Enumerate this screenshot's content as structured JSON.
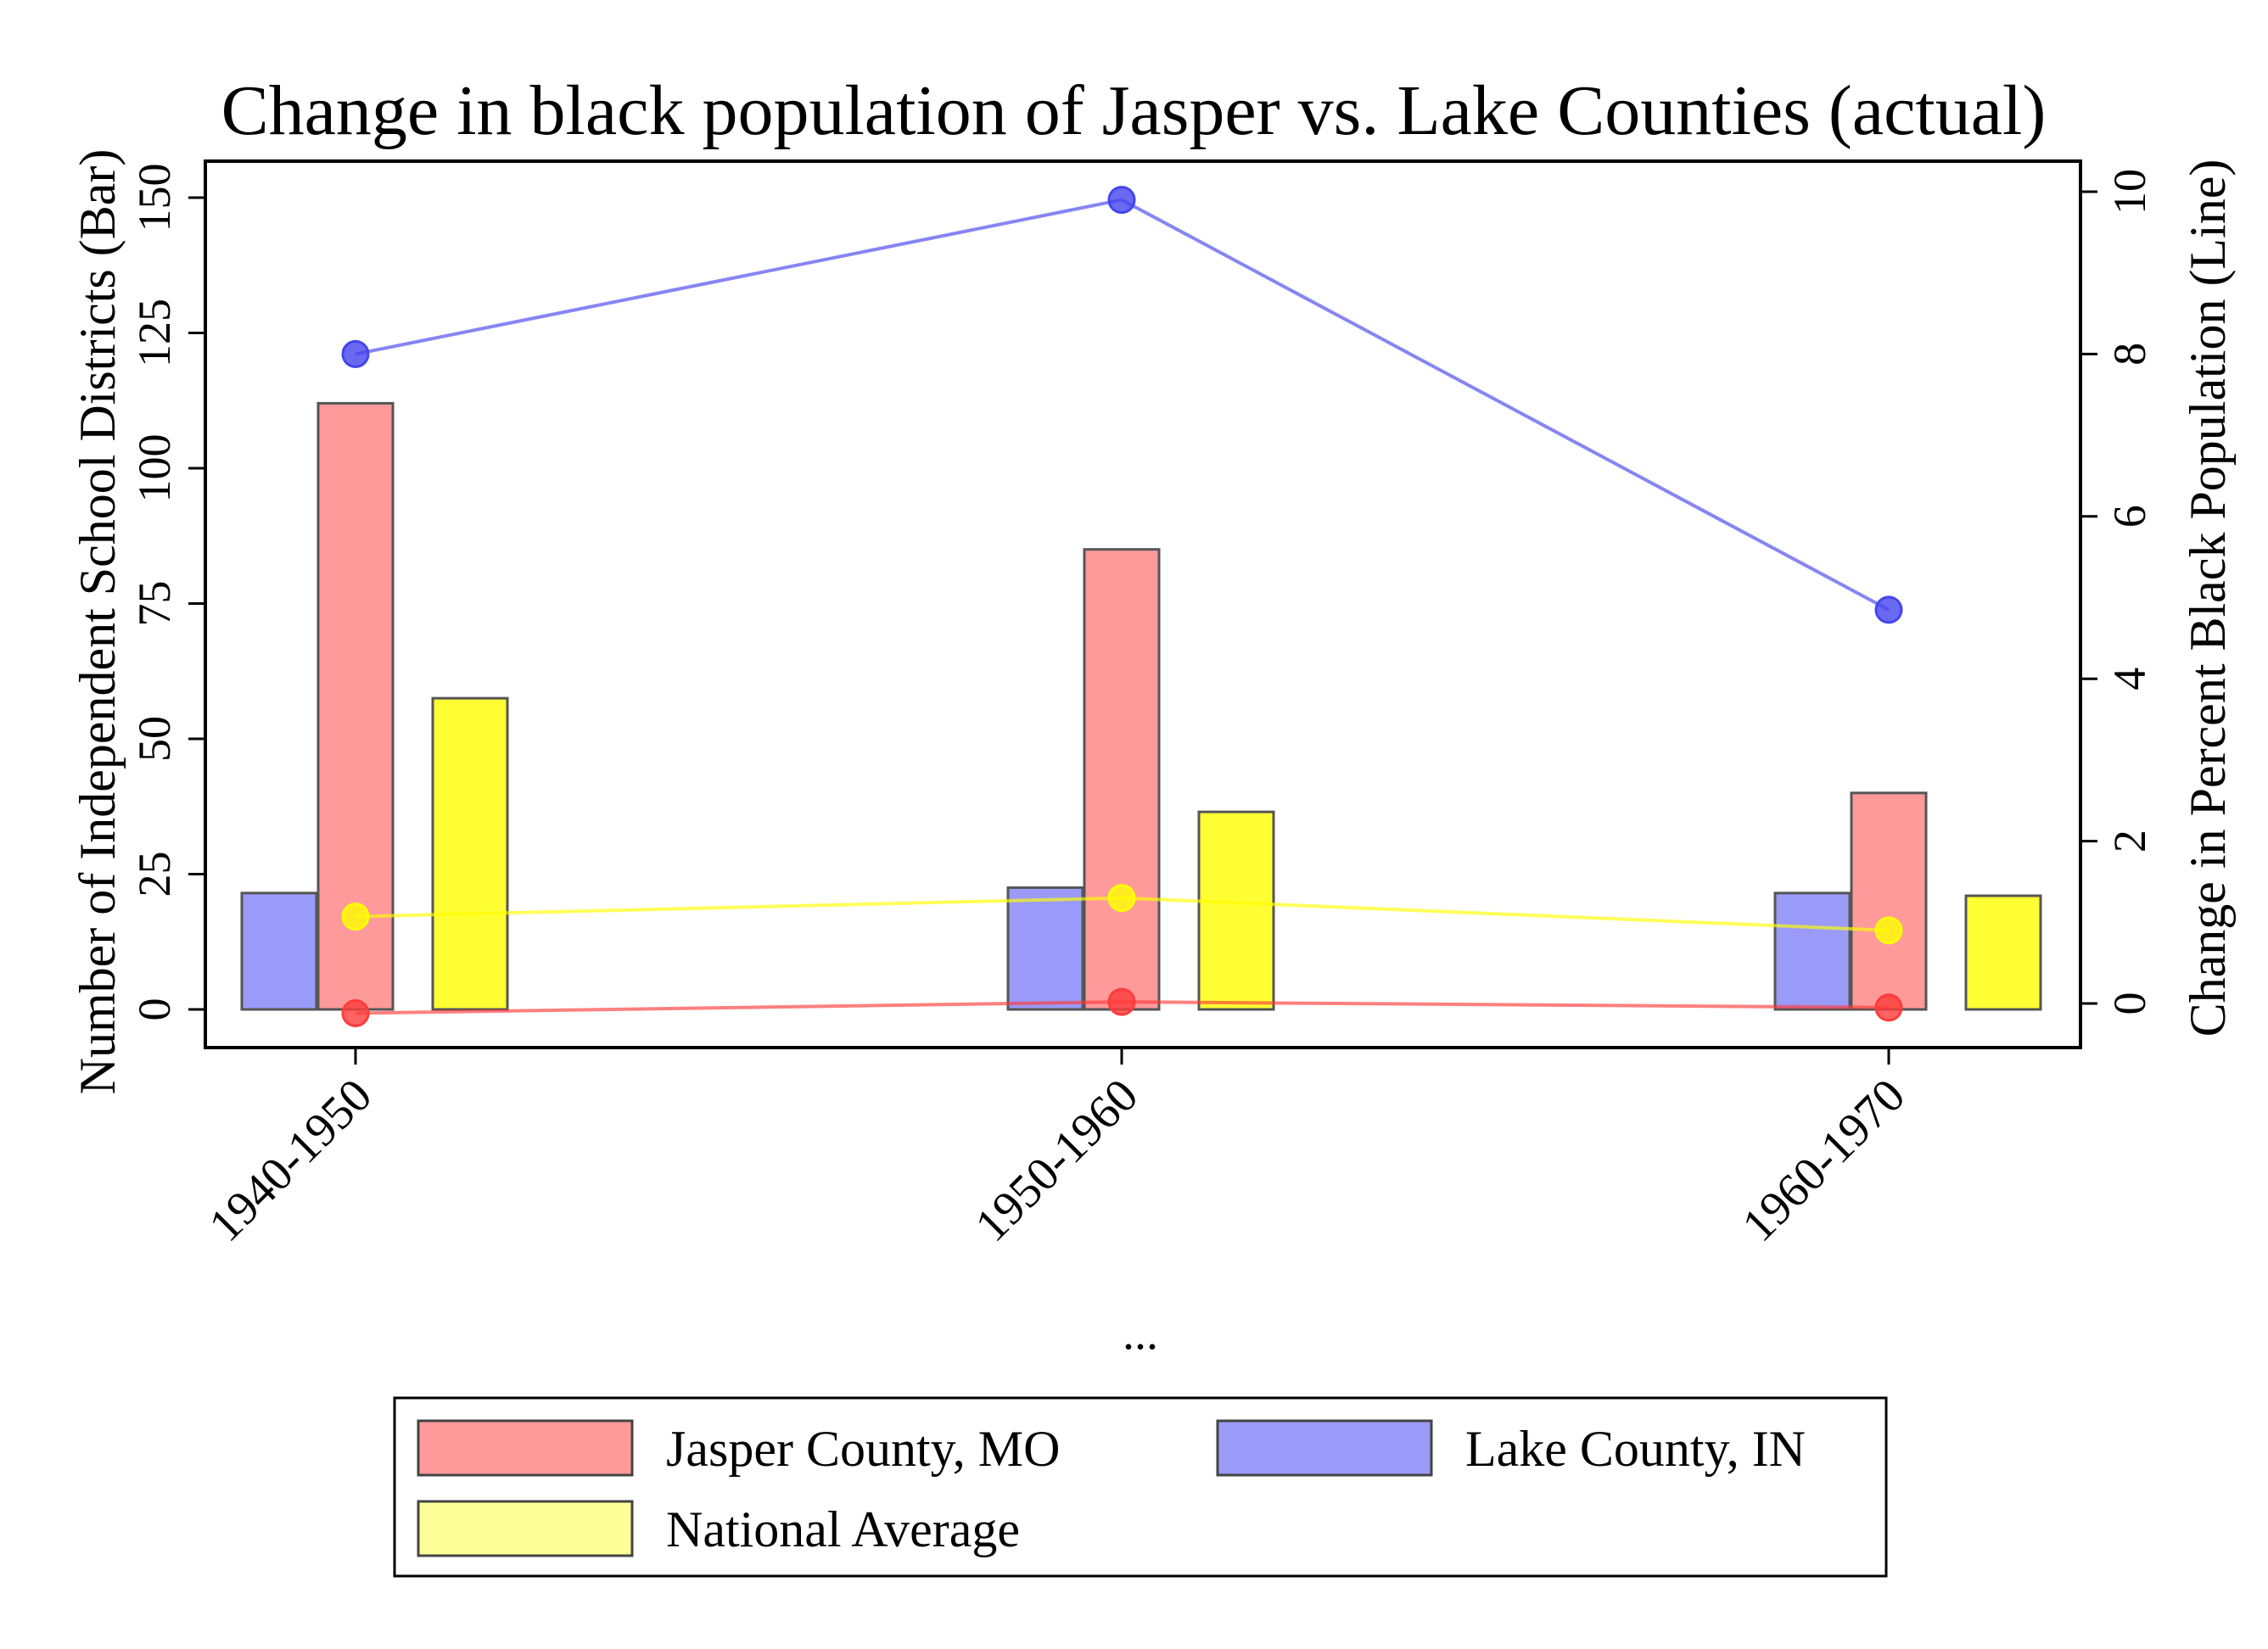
{
  "chart_data": {
    "type": "bar",
    "title": "Change in black population of Jasper vs. Lake Counties (actual)",
    "xlabel": "...",
    "ylabel_left": "Number of Independent School Districts (Bar)",
    "ylabel_right": "Change in Percent Black Population (Line)",
    "categories": [
      "1940-1950",
      "1950-1960",
      "1960-1970"
    ],
    "ylim_left": [
      0,
      150
    ],
    "ylim_right": [
      0,
      10
    ],
    "yticks_left": [
      "0",
      "25",
      "50",
      "75",
      "100",
      "125",
      "150"
    ],
    "yticks_right": [
      "0",
      "2",
      "4",
      "6",
      "8",
      "10"
    ],
    "bar_series": [
      {
        "name": "Lake County, IN",
        "values": [
          21.5,
          22.5,
          21.5
        ],
        "color": "#9a9af8"
      },
      {
        "name": "Jasper County, MO",
        "values": [
          112,
          85,
          40
        ],
        "color": "#ff9a9a"
      },
      {
        "name": "National Average",
        "values": [
          57.5,
          36.5,
          21
        ],
        "color": "#ffff33"
      }
    ],
    "line_series": [
      {
        "name": "Lake County, IN",
        "values": [
          8.0,
          9.9,
          4.85
        ],
        "color": "#4444ee"
      },
      {
        "name": "Jasper County, MO",
        "values": [
          -0.12,
          0.02,
          -0.05
        ],
        "color": "#ff3b3b"
      },
      {
        "name": "National Average",
        "values": [
          1.07,
          1.3,
          0.9
        ],
        "color": "#ffff00"
      }
    ],
    "legend": [
      {
        "label": "Jasper County, MO",
        "color": "#ff9a9a"
      },
      {
        "label": "Lake County, IN",
        "color": "#9a9af8"
      },
      {
        "label": "National Average",
        "color": "#ffff99"
      }
    ],
    "legend_position": "bottom",
    "grid": false
  }
}
